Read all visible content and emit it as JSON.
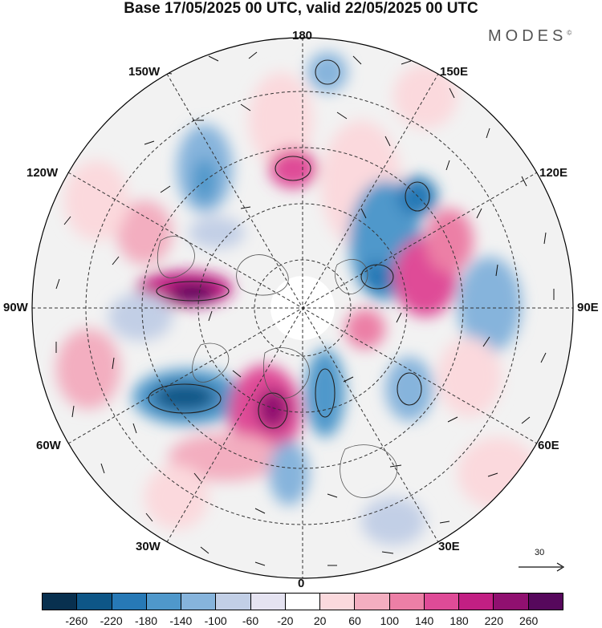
{
  "title": "Base 17/05/2025 00 UTC, valid 22/05/2025 00 UTC",
  "brand": "MODES",
  "brand_mark": "©",
  "longitude_labels": {
    "top": "180",
    "bottom": "0",
    "left": "90W",
    "right": "90E",
    "upper_left_1": "150W",
    "upper_left_2": "120W",
    "lower_left_1": "60W",
    "lower_left_2": "30W",
    "upper_right_1": "150E",
    "upper_right_2": "120E",
    "lower_right_1": "60E",
    "lower_right_2": "30E"
  },
  "reference_vector": {
    "value": "30",
    "icon": "right-arrow-icon"
  },
  "colorbar": {
    "colors": [
      "#08304f",
      "#0e5687",
      "#2779b6",
      "#4f98cb",
      "#86b4dc",
      "#c2cfe6",
      "#e5e3f1",
      "#ffffff",
      "#fbd9dd",
      "#f3aec0",
      "#ec7fa6",
      "#df4b97",
      "#c21f83",
      "#901070",
      "#56085c"
    ],
    "tick_labels": [
      "-260",
      "-220",
      "-180",
      "-140",
      "-100",
      "-60",
      "-20",
      "20",
      "60",
      "100",
      "140",
      "180",
      "220",
      "260"
    ]
  },
  "colors": {
    "land_fill": "#f2f2f2",
    "coast": "#555555",
    "grid": "#333333"
  }
}
